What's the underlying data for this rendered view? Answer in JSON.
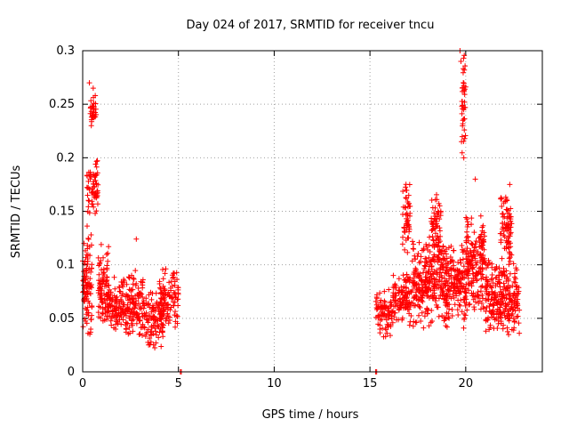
{
  "chart_data": {
    "type": "scatter",
    "title": "Day 024 of 2017, SRMTID for receiver tncu",
    "xlabel": "GPS time / hours",
    "ylabel": "SRMTID / TECUs",
    "xlim": [
      0,
      24
    ],
    "ylim": [
      0,
      0.3
    ],
    "xticks": [
      "0",
      "5",
      "10",
      "15",
      "20"
    ],
    "yticks": [
      "0",
      "0.05",
      "0.1",
      "0.15",
      "0.2",
      "0.25",
      "0.3"
    ],
    "grid": true,
    "marker": "plus",
    "series": [
      {
        "color": "#ff0000",
        "clusters": [
          {
            "x": [
              0.0,
              0.5
            ],
            "y": [
              0.03,
              0.14
            ]
          },
          {
            "x": [
              0.2,
              0.8
            ],
            "y": [
              0.14,
              0.2
            ]
          },
          {
            "x": [
              0.4,
              0.7
            ],
            "y": [
              0.22,
              0.27
            ]
          },
          {
            "x": [
              0.8,
              1.4
            ],
            "y": [
              0.04,
              0.12
            ]
          },
          {
            "x": [
              1.2,
              2.4
            ],
            "y": [
              0.03,
              0.09
            ]
          },
          {
            "x": [
              2.4,
              3.2
            ],
            "y": [
              0.03,
              0.1
            ]
          },
          {
            "x": [
              3.2,
              4.2
            ],
            "y": [
              0.02,
              0.08
            ]
          },
          {
            "x": [
              4.0,
              5.0
            ],
            "y": [
              0.04,
              0.1
            ]
          },
          {
            "x": [
              15.3,
              16.2
            ],
            "y": [
              0.03,
              0.08
            ]
          },
          {
            "x": [
              16.2,
              17.2
            ],
            "y": [
              0.04,
              0.1
            ]
          },
          {
            "x": [
              16.7,
              17.1
            ],
            "y": [
              0.11,
              0.18
            ]
          },
          {
            "x": [
              17.2,
              19.0
            ],
            "y": [
              0.04,
              0.13
            ]
          },
          {
            "x": [
              18.2,
              18.7
            ],
            "y": [
              0.1,
              0.17
            ]
          },
          {
            "x": [
              19.0,
              20.0
            ],
            "y": [
              0.04,
              0.12
            ]
          },
          {
            "x": [
              19.8,
              20.0
            ],
            "y": [
              0.2,
              0.3
            ]
          },
          {
            "x": [
              20.0,
              21.0
            ],
            "y": [
              0.05,
              0.15
            ]
          },
          {
            "x": [
              21.0,
              22.8
            ],
            "y": [
              0.03,
              0.11
            ]
          },
          {
            "x": [
              21.8,
              22.4
            ],
            "y": [
              0.1,
              0.17
            ]
          }
        ],
        "points": [
          {
            "x": 0.35,
            "y": 0.27
          },
          {
            "x": 0.55,
            "y": 0.265
          },
          {
            "x": 0.5,
            "y": 0.24
          },
          {
            "x": 0.45,
            "y": 0.23
          },
          {
            "x": 2.8,
            "y": 0.124
          },
          {
            "x": 19.7,
            "y": 0.3
          },
          {
            "x": 19.75,
            "y": 0.29
          },
          {
            "x": 19.8,
            "y": 0.248
          },
          {
            "x": 19.85,
            "y": 0.235
          },
          {
            "x": 19.78,
            "y": 0.215
          },
          {
            "x": 19.9,
            "y": 0.2
          },
          {
            "x": 5.1,
            "y": 0.0
          },
          {
            "x": 5.15,
            "y": 0.0
          },
          {
            "x": 15.3,
            "y": 0.0
          },
          {
            "x": 15.35,
            "y": 0.0
          },
          {
            "x": 20.5,
            "y": 0.18
          },
          {
            "x": 22.3,
            "y": 0.175
          },
          {
            "x": 18.7,
            "y": 0.15
          }
        ]
      }
    ]
  }
}
